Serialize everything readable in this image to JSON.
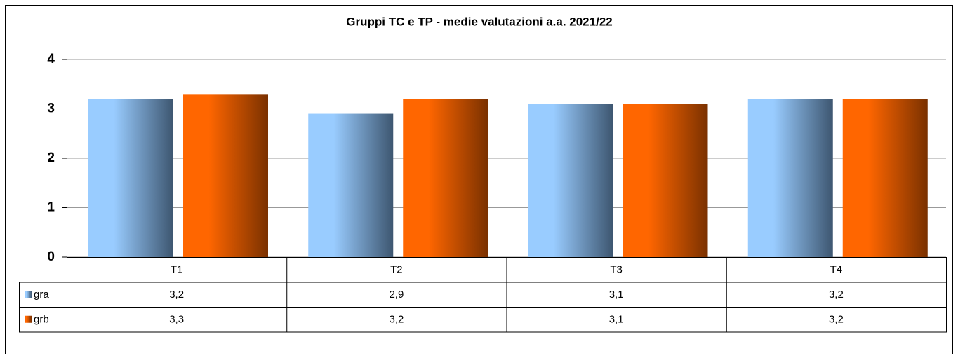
{
  "chart_data": {
    "type": "bar",
    "title": "Gruppi TC e TP - medie valutazioni a.a. 2021/22",
    "categories": [
      "T1",
      "T2",
      "T3",
      "T4"
    ],
    "series": [
      {
        "name": "gra",
        "color": "#99ccff",
        "values": [
          3.2,
          2.9,
          3.1,
          3.2
        ],
        "value_labels": [
          "3,2",
          "2,9",
          "3,1",
          "3,2"
        ]
      },
      {
        "name": "grb",
        "color": "#ff6600",
        "values": [
          3.3,
          3.2,
          3.1,
          3.2
        ],
        "value_labels": [
          "3,3",
          "3,2",
          "3,1",
          "3,2"
        ]
      }
    ],
    "ylim": [
      0,
      4
    ],
    "yticks": [
      0,
      1,
      2,
      3,
      4
    ],
    "grid": true,
    "data_table": true
  }
}
